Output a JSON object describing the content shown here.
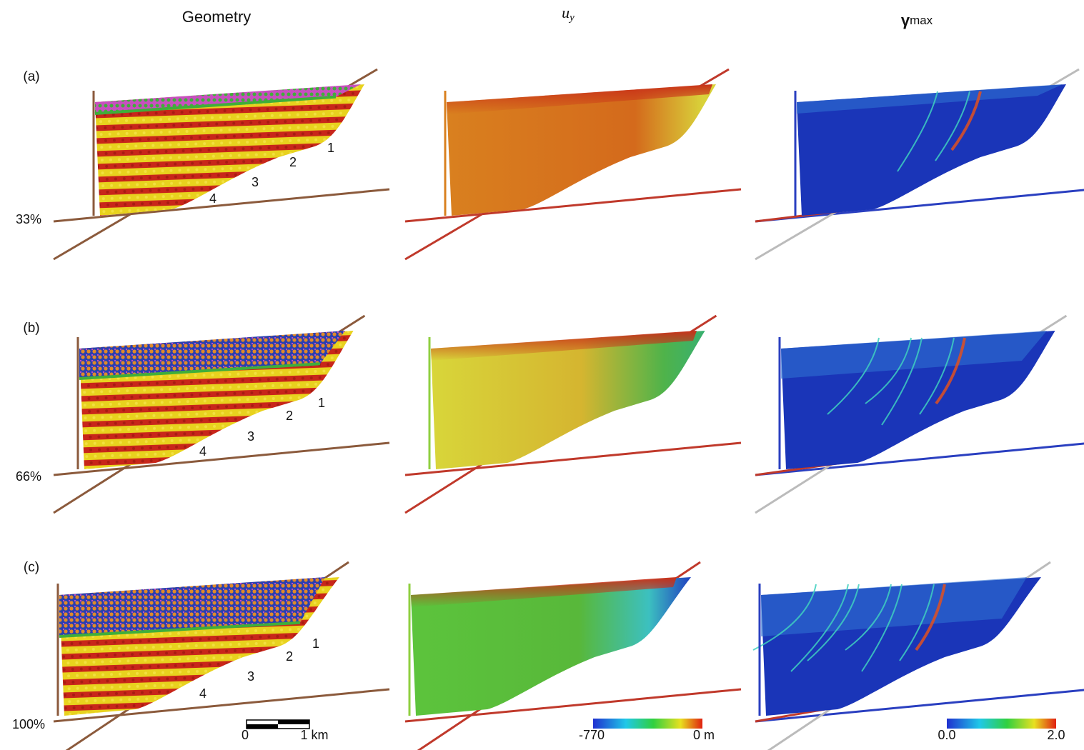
{
  "columns": [
    {
      "title": "Geometry"
    },
    {
      "symbol": "u",
      "subscript": "y"
    },
    {
      "symbol": "γ",
      "subscript": "max"
    }
  ],
  "rows": [
    {
      "label": "(a)",
      "progress": "33%",
      "fault_labels": [
        "1",
        "2",
        "3",
        "4"
      ]
    },
    {
      "label": "(b)",
      "progress": "66%",
      "fault_labels": [
        "1",
        "2",
        "3",
        "4"
      ]
    },
    {
      "label": "(c)",
      "progress": "100%",
      "fault_labels": [
        "1",
        "2",
        "3",
        "4"
      ]
    }
  ],
  "scale_bar": {
    "start": "0",
    "end": "1 km"
  },
  "colorbars": [
    {
      "min": "-770",
      "max": "0 m"
    },
    {
      "min": "0.0",
      "max": "2.0"
    }
  ]
}
